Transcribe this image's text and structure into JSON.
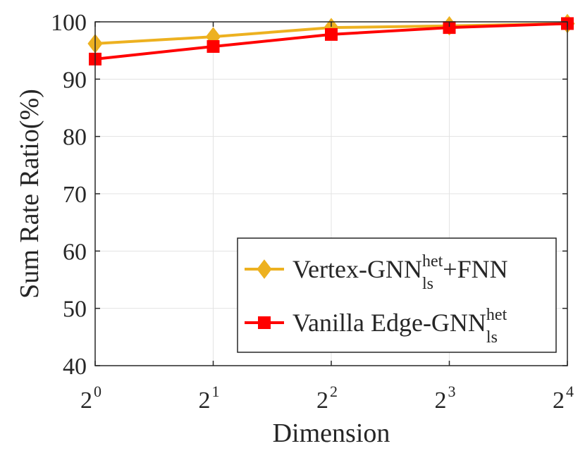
{
  "chart_data": {
    "type": "line",
    "x": [
      1,
      2,
      4,
      8,
      16
    ],
    "x_tick_labels": [
      {
        "base": "2",
        "exp": "0"
      },
      {
        "base": "2",
        "exp": "1"
      },
      {
        "base": "2",
        "exp": "2"
      },
      {
        "base": "2",
        "exp": "3"
      },
      {
        "base": "2",
        "exp": "4"
      }
    ],
    "x_scale": "log2",
    "xlabel": "Dimension",
    "ylabel": "Sum Rate Ratio(%)",
    "ylim": [
      40,
      100
    ],
    "y_ticks": [
      "40",
      "50",
      "60",
      "70",
      "80",
      "90",
      "100"
    ],
    "grid": true,
    "legend_position": "bottom-right",
    "series": [
      {
        "name_parts": {
          "main": "Vertex-GNN",
          "sup": "het",
          "sub": "ls",
          "suffix": "+FNN"
        },
        "color": "#EDB120",
        "marker": "diamond",
        "values": [
          96.2,
          97.4,
          99.0,
          99.3,
          99.7
        ]
      },
      {
        "name_parts": {
          "main": "Vanilla Edge-GNN",
          "sup": "het",
          "sub": "ls",
          "suffix": ""
        },
        "color": "#FF0000",
        "marker": "square",
        "values": [
          93.5,
          95.7,
          97.8,
          99.0,
          99.7
        ]
      }
    ]
  }
}
